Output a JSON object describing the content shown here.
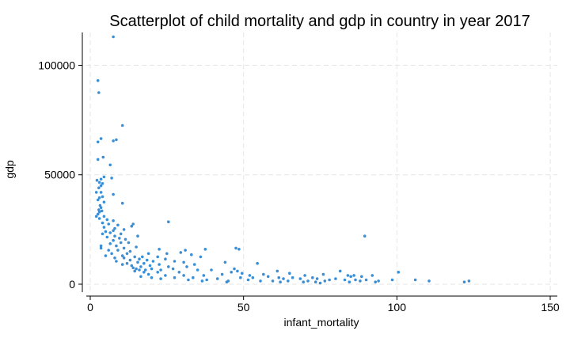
{
  "chart_data": {
    "type": "scatter",
    "title": "Scatterplot of child mortality and gdp in country in year 2017",
    "xlabel": "infant_mortality",
    "ylabel": "gdp",
    "xlim": [
      0,
      150
    ],
    "ylim": [
      0,
      115000
    ],
    "xticks": [
      0,
      50,
      100,
      150
    ],
    "yticks": [
      0,
      50000,
      100000
    ],
    "grid": true,
    "point_color": "#3a8fd6",
    "points": [
      [
        7.5,
        113000
      ],
      [
        2.5,
        93000
      ],
      [
        2.8,
        87500
      ],
      [
        10.5,
        72500
      ],
      [
        3.5,
        66500
      ],
      [
        2.5,
        65000
      ],
      [
        8.5,
        66000
      ],
      [
        7.5,
        65500
      ],
      [
        4.2,
        58000
      ],
      [
        2.5,
        57000
      ],
      [
        6.5,
        54500
      ],
      [
        4.5,
        49000
      ],
      [
        3.5,
        48000
      ],
      [
        2.2,
        47500
      ],
      [
        3.0,
        46500
      ],
      [
        4.0,
        46000
      ],
      [
        3.5,
        45000
      ],
      [
        2.8,
        44000
      ],
      [
        7.0,
        48500
      ],
      [
        2.0,
        42000
      ],
      [
        3.5,
        42000
      ],
      [
        7.5,
        41000
      ],
      [
        4.0,
        40000
      ],
      [
        3.0,
        39500
      ],
      [
        2.5,
        38500
      ],
      [
        10.5,
        37000
      ],
      [
        4.5,
        37500
      ],
      [
        3.2,
        36000
      ],
      [
        3.5,
        35000
      ],
      [
        2.8,
        34000
      ],
      [
        3.8,
        33500
      ],
      [
        3.0,
        33000
      ],
      [
        2.5,
        32000
      ],
      [
        4.5,
        31000
      ],
      [
        2.0,
        31000
      ],
      [
        3.0,
        30000
      ],
      [
        5.5,
        29500
      ],
      [
        7.5,
        29000
      ],
      [
        4.0,
        28000
      ],
      [
        6.0,
        27500
      ],
      [
        14.0,
        27500
      ],
      [
        25.5,
        28500
      ],
      [
        9.0,
        27000
      ],
      [
        13.5,
        26500
      ],
      [
        4.5,
        26000
      ],
      [
        8.0,
        25500
      ],
      [
        11.0,
        25000
      ],
      [
        7.5,
        24500
      ],
      [
        5.0,
        24000
      ],
      [
        6.5,
        23500
      ],
      [
        4.0,
        23000
      ],
      [
        10.0,
        23000
      ],
      [
        15.5,
        22000
      ],
      [
        8.0,
        22000
      ],
      [
        5.5,
        21500
      ],
      [
        9.5,
        21000
      ],
      [
        11.5,
        20500
      ],
      [
        7.5,
        20000
      ],
      [
        3.5,
        17500
      ],
      [
        6.5,
        18500
      ],
      [
        10.0,
        19000
      ],
      [
        12.5,
        19000
      ],
      [
        8.5,
        17500
      ],
      [
        15.0,
        17000
      ],
      [
        3.5,
        16500
      ],
      [
        11.0,
        16500
      ],
      [
        13.0,
        15000
      ],
      [
        6.0,
        15500
      ],
      [
        9.0,
        15500
      ],
      [
        31.0,
        15500
      ],
      [
        37.5,
        16000
      ],
      [
        47.5,
        16500
      ],
      [
        48.5,
        16000
      ],
      [
        89.5,
        22000
      ],
      [
        22.5,
        16000
      ],
      [
        29.5,
        14500
      ],
      [
        7.0,
        14000
      ],
      [
        12.0,
        14000
      ],
      [
        19.0,
        14000
      ],
      [
        25.0,
        14000
      ],
      [
        33.0,
        13500
      ],
      [
        5.0,
        13000
      ],
      [
        10.5,
        13000
      ],
      [
        14.5,
        12500
      ],
      [
        17.0,
        12500
      ],
      [
        22.0,
        12500
      ],
      [
        36.0,
        12500
      ],
      [
        8.0,
        12000
      ],
      [
        11.0,
        12000
      ],
      [
        16.0,
        11500
      ],
      [
        24.5,
        11500
      ],
      [
        13.0,
        11000
      ],
      [
        18.5,
        11000
      ],
      [
        8.5,
        10500
      ],
      [
        20.5,
        10500
      ],
      [
        27.5,
        10500
      ],
      [
        15.5,
        10000
      ],
      [
        30.5,
        10000
      ],
      [
        44.0,
        10000
      ],
      [
        54.5,
        9500
      ],
      [
        12.0,
        9500
      ],
      [
        17.5,
        9500
      ],
      [
        10.5,
        9000
      ],
      [
        22.5,
        9000
      ],
      [
        34.0,
        9000
      ],
      [
        13.5,
        8500
      ],
      [
        19.5,
        8500
      ],
      [
        14.0,
        7500
      ],
      [
        16.5,
        8000
      ],
      [
        25.5,
        8000
      ],
      [
        31.5,
        8000
      ],
      [
        15.0,
        7000
      ],
      [
        20.0,
        7000
      ],
      [
        27.0,
        7000
      ],
      [
        47.0,
        7000
      ],
      [
        16.0,
        6500
      ],
      [
        18.0,
        6500
      ],
      [
        23.0,
        6500
      ],
      [
        35.0,
        6500
      ],
      [
        39.5,
        6500
      ],
      [
        48.0,
        6000
      ],
      [
        61.0,
        6000
      ],
      [
        81.5,
        6000
      ],
      [
        100.5,
        5500
      ],
      [
        14.5,
        6000
      ],
      [
        17.5,
        5500
      ],
      [
        22.0,
        5500
      ],
      [
        29.0,
        5500
      ],
      [
        46.0,
        5500
      ],
      [
        49.5,
        5000
      ],
      [
        56.5,
        4500
      ],
      [
        65.0,
        5000
      ],
      [
        70.0,
        4000
      ],
      [
        76.0,
        4500
      ],
      [
        84.0,
        4000
      ],
      [
        86.0,
        4000
      ],
      [
        92.0,
        4000
      ],
      [
        19.0,
        4500
      ],
      [
        24.5,
        4000
      ],
      [
        30.5,
        4000
      ],
      [
        37.0,
        4000
      ],
      [
        43.0,
        4500
      ],
      [
        52.0,
        4000
      ],
      [
        58.0,
        3500
      ],
      [
        61.5,
        3000
      ],
      [
        66.0,
        3000
      ],
      [
        72.5,
        3000
      ],
      [
        80.0,
        2500
      ],
      [
        85.0,
        3500
      ],
      [
        88.5,
        3500
      ],
      [
        16.5,
        3500
      ],
      [
        20.0,
        3000
      ],
      [
        27.5,
        3000
      ],
      [
        33.5,
        3000
      ],
      [
        41.5,
        2500
      ],
      [
        49.0,
        3000
      ],
      [
        53.0,
        3000
      ],
      [
        63.0,
        2500
      ],
      [
        68.5,
        2500
      ],
      [
        74.0,
        2500
      ],
      [
        78.0,
        2000
      ],
      [
        83.0,
        2000
      ],
      [
        86.5,
        2000
      ],
      [
        90.0,
        2000
      ],
      [
        98.5,
        2000
      ],
      [
        106.0,
        2000
      ],
      [
        110.5,
        1500
      ],
      [
        123.5,
        1500
      ],
      [
        32.0,
        2000
      ],
      [
        38.0,
        2000
      ],
      [
        45.0,
        1500
      ],
      [
        51.5,
        2000
      ],
      [
        55.5,
        1500
      ],
      [
        59.5,
        1500
      ],
      [
        64.5,
        1500
      ],
      [
        71.0,
        1500
      ],
      [
        73.5,
        1000
      ],
      [
        76.5,
        1500
      ],
      [
        84.5,
        1000
      ],
      [
        88.0,
        1500
      ],
      [
        93.0,
        1000
      ],
      [
        122.0,
        1000
      ],
      [
        23.0,
        2500
      ],
      [
        36.5,
        1500
      ],
      [
        44.5,
        1000
      ],
      [
        62.0,
        1000
      ],
      [
        69.5,
        1000
      ],
      [
        75.0,
        500
      ],
      [
        94.0,
        1500
      ]
    ]
  }
}
